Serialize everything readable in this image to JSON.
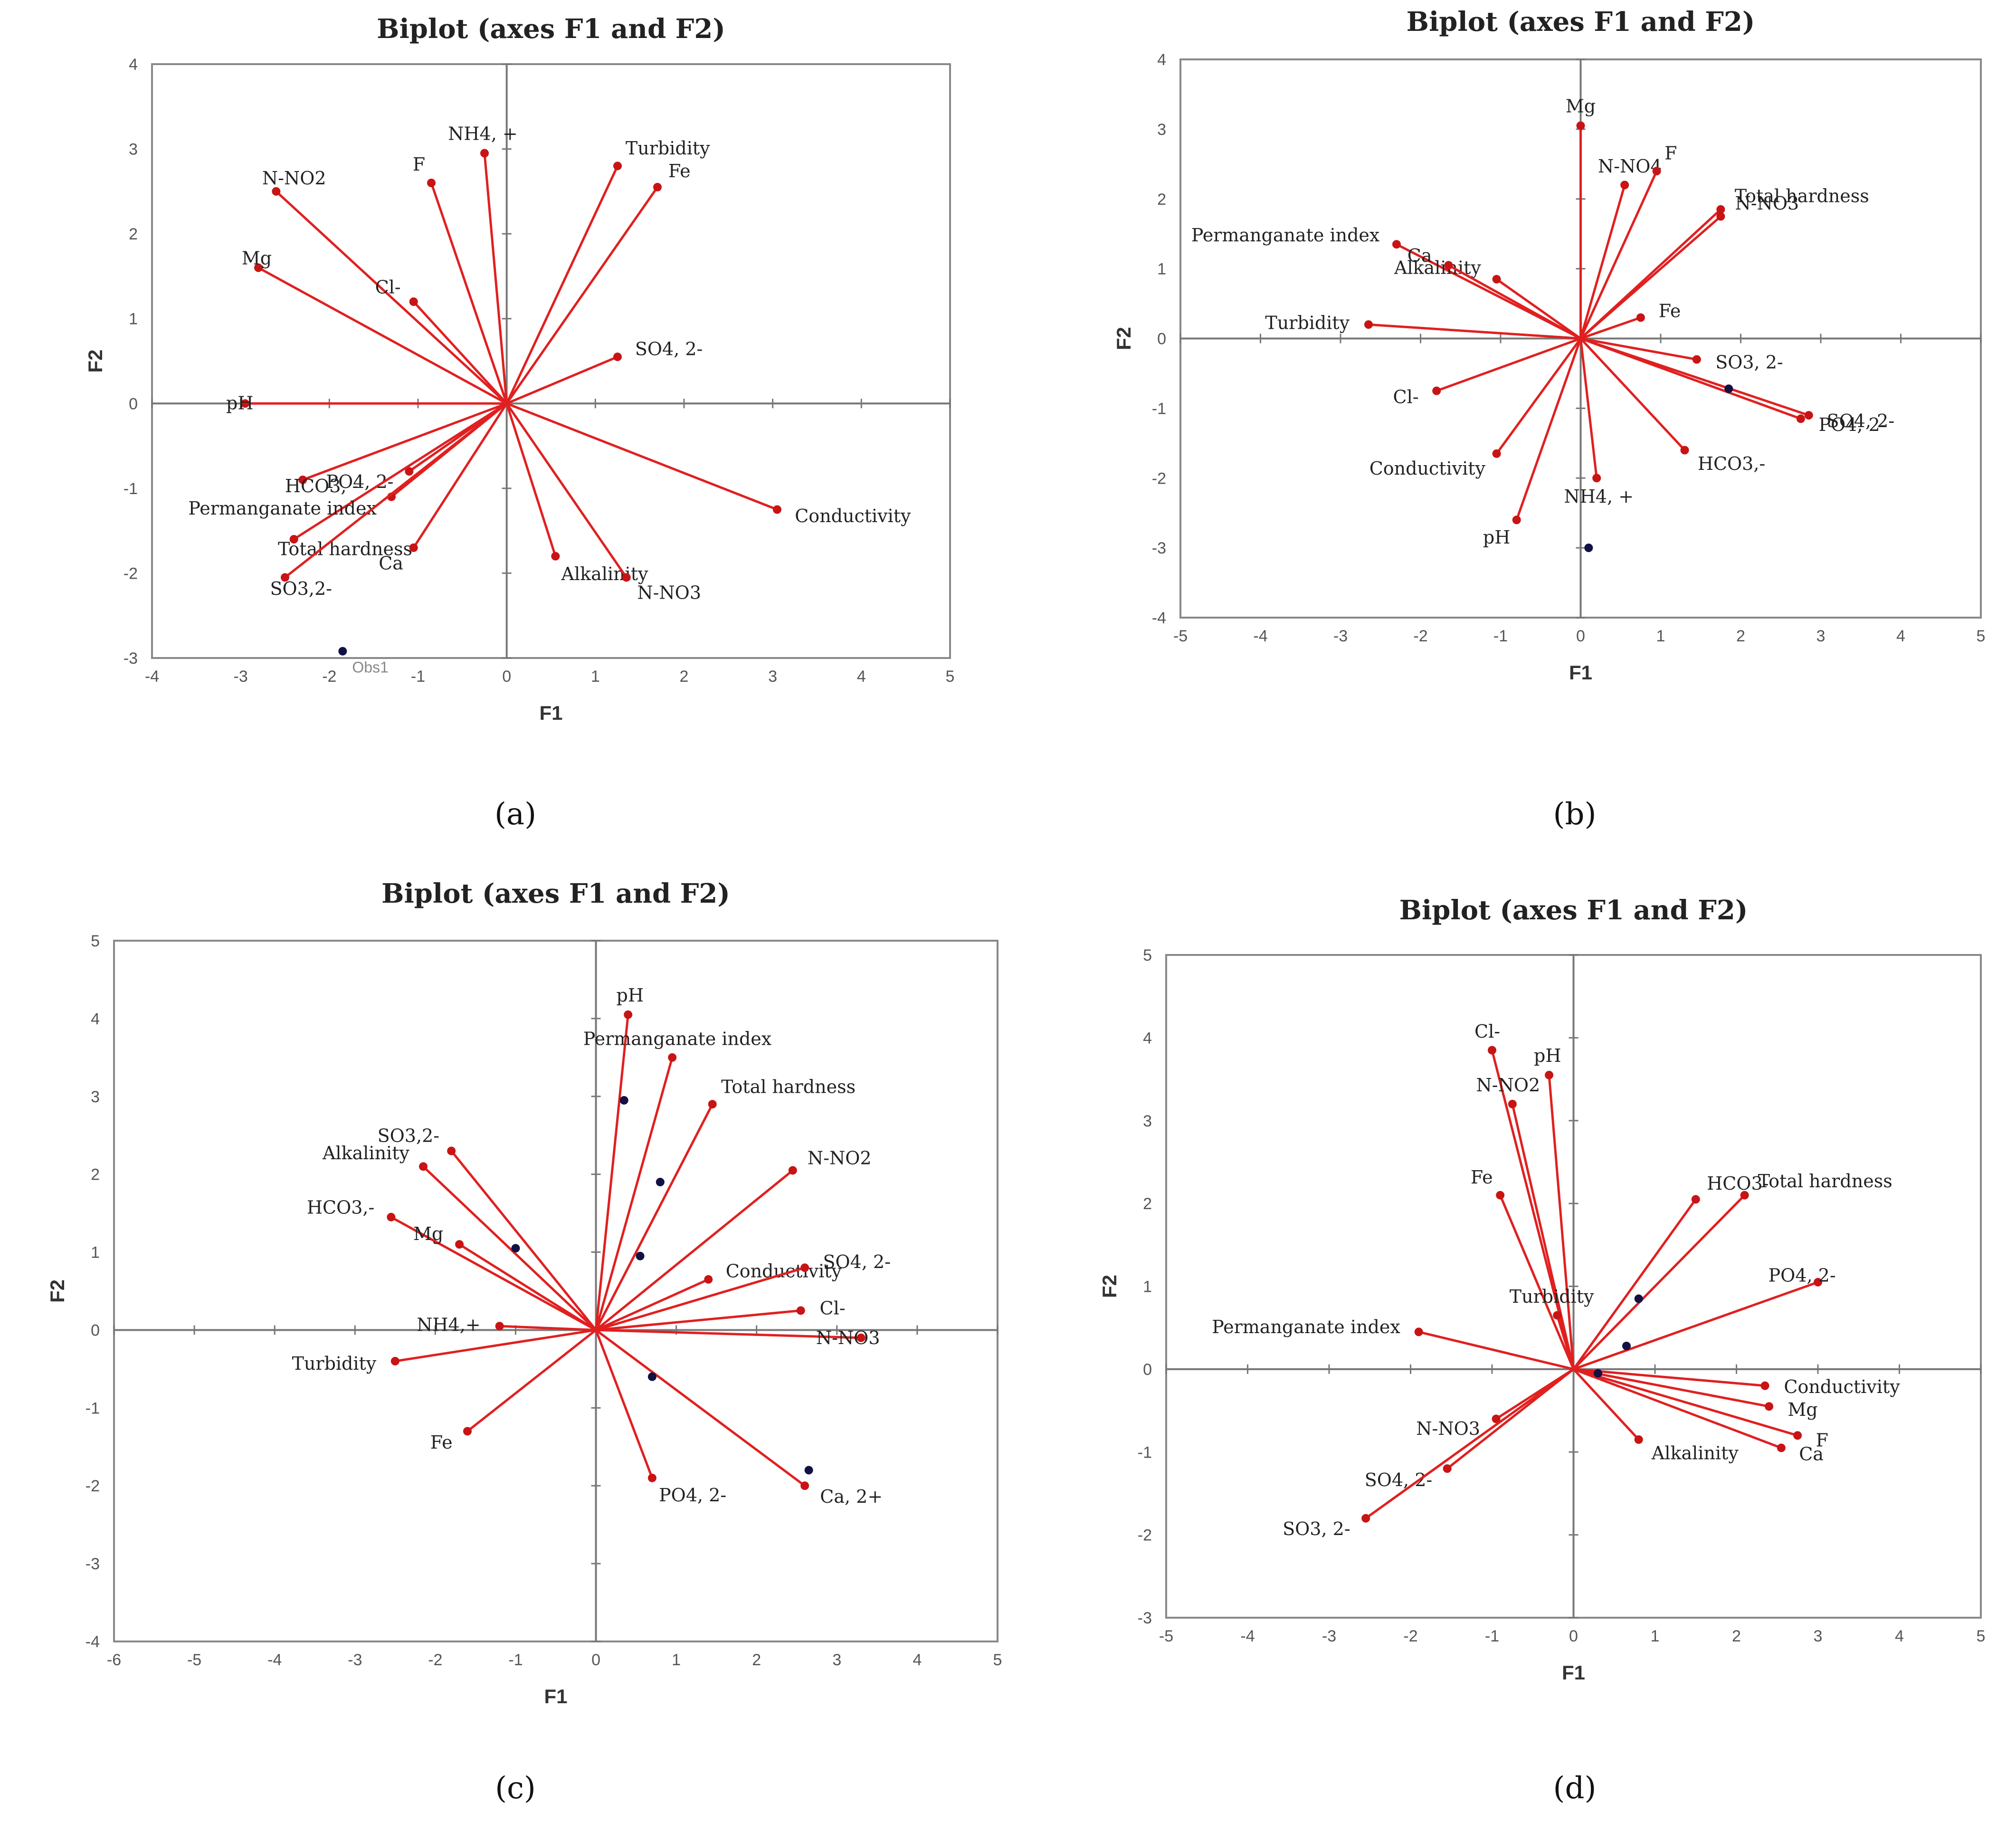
{
  "chart_data": [
    {
      "type": "scatter",
      "panel": "a",
      "caption": "(a)",
      "title": "Biplot (axes F1 and F2)",
      "xlabel": "F1",
      "ylabel": "F2",
      "xlim": [
        -4,
        5
      ],
      "ylim": [
        -3,
        4
      ],
      "xticks": [
        "-4",
        "-3",
        "-2",
        "-1",
        "0",
        "1",
        "2",
        "3",
        "4",
        "5"
      ],
      "yticks": [
        "-3",
        "-2",
        "-1",
        "0",
        "1",
        "2",
        "3",
        "4"
      ],
      "vectors": [
        {
          "name": "NH4, +",
          "x": -0.25,
          "y": 2.95
        },
        {
          "name": "F",
          "x": -0.85,
          "y": 2.6
        },
        {
          "name": "N-NO2",
          "x": -2.6,
          "y": 2.5
        },
        {
          "name": "Cl-",
          "x": -1.05,
          "y": 1.2
        },
        {
          "name": "Mg",
          "x": -2.8,
          "y": 1.6
        },
        {
          "name": "Turbidity",
          "x": 1.25,
          "y": 2.8
        },
        {
          "name": "Fe",
          "x": 1.7,
          "y": 2.55
        },
        {
          "name": "SO4, 2-",
          "x": 1.25,
          "y": 0.55
        },
        {
          "name": "pH",
          "x": -2.95,
          "y": 0.0
        },
        {
          "name": "HCO3, -",
          "x": -2.3,
          "y": -0.9
        },
        {
          "name": "PO4, 2-",
          "x": -1.1,
          "y": -0.8
        },
        {
          "name": "Total hardness",
          "x": -2.4,
          "y": -1.6
        },
        {
          "name": "Permanganate index",
          "x": -1.3,
          "y": -1.1
        },
        {
          "name": "SO3,2-",
          "x": -2.5,
          "y": -2.05
        },
        {
          "name": "Ca",
          "x": -1.05,
          "y": -1.7
        },
        {
          "name": "Alkalinity",
          "x": 0.55,
          "y": -1.8
        },
        {
          "name": "N-NO3",
          "x": 1.35,
          "y": -2.05
        },
        {
          "name": "Conductivity",
          "x": 3.05,
          "y": -1.25
        }
      ],
      "observations": [
        {
          "name": "Obs1",
          "x": -1.85,
          "y": -2.92
        }
      ]
    },
    {
      "type": "scatter",
      "panel": "b",
      "caption": "(b)",
      "title": "Biplot (axes F1 and F2)",
      "xlabel": "F1",
      "ylabel": "F2",
      "xlim": [
        -5,
        5
      ],
      "ylim": [
        -4,
        4
      ],
      "xticks": [
        "-5",
        "-4",
        "-3",
        "-2",
        "-1",
        "0",
        "1",
        "2",
        "3",
        "4",
        "5"
      ],
      "yticks": [
        "-4",
        "-3",
        "-2",
        "-1",
        "0",
        "1",
        "2",
        "3",
        "4"
      ],
      "vectors": [
        {
          "name": "Mg",
          "x": 0.0,
          "y": 3.05
        },
        {
          "name": "N-NO4",
          "x": 0.55,
          "y": 2.2
        },
        {
          "name": "F",
          "x": 0.95,
          "y": 2.4
        },
        {
          "name": "Total hardness",
          "x": 1.75,
          "y": 1.85
        },
        {
          "name": "N-NO3",
          "x": 1.75,
          "y": 1.75
        },
        {
          "name": "Fe",
          "x": 0.75,
          "y": 0.3
        },
        {
          "name": "Permanganate index",
          "x": -2.3,
          "y": 1.35
        },
        {
          "name": "Alkalinity",
          "x": -1.05,
          "y": 0.85
        },
        {
          "name": "Ca",
          "x": -1.65,
          "y": 1.05
        },
        {
          "name": "Turbidity",
          "x": -2.65,
          "y": 0.2
        },
        {
          "name": "SO3, 2-",
          "x": 1.45,
          "y": -0.3
        },
        {
          "name": "SO4, 2-",
          "x": 2.85,
          "y": -1.1
        },
        {
          "name": "PO4, 2-",
          "x": 2.75,
          "y": -1.15
        },
        {
          "name": "HCO3,-",
          "x": 1.3,
          "y": -1.6
        },
        {
          "name": "Cl-",
          "x": -1.8,
          "y": -0.75
        },
        {
          "name": "Conductivity",
          "x": -1.05,
          "y": -1.65
        },
        {
          "name": "pH",
          "x": -0.8,
          "y": -2.6
        },
        {
          "name": "NH4, +",
          "x": 0.2,
          "y": -2.0
        }
      ],
      "observations": [
        {
          "name": "",
          "x": 1.85,
          "y": -0.72
        },
        {
          "name": "",
          "x": 0.1,
          "y": -3.0
        }
      ]
    },
    {
      "type": "scatter",
      "panel": "c",
      "caption": "(c)",
      "title": "Biplot (axes F1 and F2)",
      "xlabel": "F1",
      "ylabel": "F2",
      "xlim": [
        -6,
        5
      ],
      "ylim": [
        -4,
        5
      ],
      "xticks": [
        "-6",
        "-5",
        "-4",
        "-3",
        "-2",
        "-1",
        "0",
        "1",
        "2",
        "3",
        "4",
        "5"
      ],
      "yticks": [
        "-4",
        "-3",
        "-2",
        "-1",
        "0",
        "1",
        "2",
        "3",
        "4",
        "5"
      ],
      "vectors": [
        {
          "name": "pH",
          "x": 0.4,
          "y": 4.05
        },
        {
          "name": "Permanganate index",
          "x": 0.95,
          "y": 3.5
        },
        {
          "name": "Total hardness",
          "x": 1.45,
          "y": 2.9
        },
        {
          "name": "N-NO2",
          "x": 2.45,
          "y": 2.05
        },
        {
          "name": "Conductivity",
          "x": 1.4,
          "y": 0.65
        },
        {
          "name": "SO4, 2-",
          "x": 2.6,
          "y": 0.8
        },
        {
          "name": "Cl-",
          "x": 2.55,
          "y": 0.25
        },
        {
          "name": "N-NO3",
          "x": 3.3,
          "y": -0.1
        },
        {
          "name": "Ca, 2+",
          "x": 2.6,
          "y": -2.0
        },
        {
          "name": "PO4, 2-",
          "x": 0.7,
          "y": -1.9
        },
        {
          "name": "Fe",
          "x": -1.6,
          "y": -1.3
        },
        {
          "name": "Turbidity",
          "x": -2.5,
          "y": -0.4
        },
        {
          "name": "NH4,+",
          "x": -1.2,
          "y": 0.05
        },
        {
          "name": "HCO3,-",
          "x": -2.55,
          "y": 1.45
        },
        {
          "name": "Mg",
          "x": -1.7,
          "y": 1.1
        },
        {
          "name": "Alkalinity",
          "x": -2.15,
          "y": 2.1
        },
        {
          "name": "SO3,2-",
          "x": -1.8,
          "y": 2.3
        }
      ],
      "observations": [
        {
          "name": "",
          "x": 0.35,
          "y": 2.95
        },
        {
          "name": "",
          "x": 0.8,
          "y": 1.9
        },
        {
          "name": "",
          "x": 0.55,
          "y": 0.95
        },
        {
          "name": "",
          "x": -1.0,
          "y": 1.05
        },
        {
          "name": "",
          "x": 0.7,
          "y": -0.6
        },
        {
          "name": "",
          "x": 2.65,
          "y": -1.8
        }
      ]
    },
    {
      "type": "scatter",
      "panel": "d",
      "caption": "(d)",
      "title": "Biplot (axes F1 and F2)",
      "xlabel": "F1",
      "ylabel": "F2",
      "xlim": [
        -5,
        5
      ],
      "ylim": [
        -3,
        5
      ],
      "xticks": [
        "-5",
        "-4",
        "-3",
        "-2",
        "-1",
        "0",
        "1",
        "2",
        "3",
        "4",
        "5"
      ],
      "yticks": [
        "-3",
        "-2",
        "-1",
        "0",
        "1",
        "2",
        "3",
        "4",
        "5"
      ],
      "vectors": [
        {
          "name": "Cl-",
          "x": -1.0,
          "y": 3.85
        },
        {
          "name": "pH",
          "x": -0.3,
          "y": 3.55
        },
        {
          "name": "N-NO2",
          "x": -0.75,
          "y": 3.2
        },
        {
          "name": "Fe",
          "x": -0.9,
          "y": 2.1
        },
        {
          "name": "Turbidity",
          "x": -0.2,
          "y": 0.65
        },
        {
          "name": "HCO3-",
          "x": 1.5,
          "y": 2.05
        },
        {
          "name": "Total hardness",
          "x": 2.1,
          "y": 2.1
        },
        {
          "name": "PO4, 2-",
          "x": 3.0,
          "y": 1.05
        },
        {
          "name": "Permanganate index",
          "x": -1.9,
          "y": 0.45
        },
        {
          "name": "Conductivity",
          "x": 2.35,
          "y": -0.2
        },
        {
          "name": "Mg",
          "x": 2.4,
          "y": -0.45
        },
        {
          "name": "F",
          "x": 2.75,
          "y": -0.8
        },
        {
          "name": "Ca",
          "x": 2.55,
          "y": -0.95
        },
        {
          "name": "Alkalinity",
          "x": 0.8,
          "y": -0.85
        },
        {
          "name": "N-NO3",
          "x": -0.95,
          "y": -0.6
        },
        {
          "name": "SO4, 2-",
          "x": -1.55,
          "y": -1.2
        },
        {
          "name": "SO3, 2-",
          "x": -2.55,
          "y": -1.8
        }
      ],
      "observations": [
        {
          "name": "",
          "x": 0.8,
          "y": 0.85
        },
        {
          "name": "",
          "x": 0.65,
          "y": 0.28
        },
        {
          "name": "",
          "x": 0.3,
          "y": -0.05
        }
      ]
    }
  ]
}
